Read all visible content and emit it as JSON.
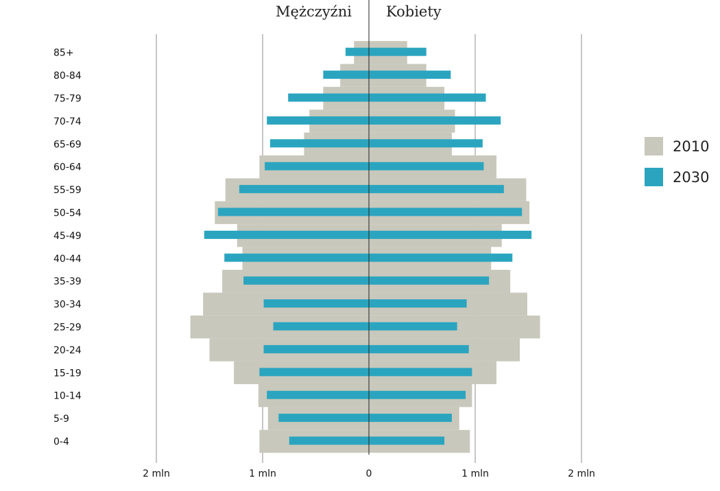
{
  "chart_data": {
    "type": "bar",
    "orientation": "horizontal",
    "subtype": "population-pyramid",
    "left_title": "Mężczyźni",
    "right_title": "Kobiety",
    "categories": [
      "85+",
      "80-84",
      "75-79",
      "70-74",
      "65-69",
      "60-64",
      "55-59",
      "50-54",
      "45-49",
      "40-44",
      "35-39",
      "30-34",
      "25-29",
      "20-24",
      "15-19",
      "10-14",
      "5-9",
      "0-4"
    ],
    "x_ticks": [
      {
        "value": -2.0,
        "label": "2 mln"
      },
      {
        "value": -1.0,
        "label": "1 mln"
      },
      {
        "value": 0.0,
        "label": "0"
      },
      {
        "value": 1.0,
        "label": "1 mln"
      },
      {
        "value": 2.0,
        "label": "2 mln"
      }
    ],
    "xlim": [
      -2.0,
      2.0
    ],
    "unit": "mln",
    "grid": true,
    "legend_position": "right",
    "series": [
      {
        "name": "2010",
        "color": "#c8c8bc",
        "style": "wide",
        "men": [
          0.14,
          0.27,
          0.43,
          0.56,
          0.61,
          1.03,
          1.35,
          1.45,
          1.24,
          1.19,
          1.38,
          1.56,
          1.68,
          1.5,
          1.27,
          1.04,
          0.95,
          1.03
        ],
        "women": [
          0.36,
          0.54,
          0.71,
          0.81,
          0.78,
          1.2,
          1.48,
          1.51,
          1.25,
          1.15,
          1.33,
          1.49,
          1.61,
          1.42,
          1.2,
          0.97,
          0.85,
          0.95
        ]
      },
      {
        "name": "2030",
        "color": "#2ba5bf",
        "style": "narrow",
        "men": [
          0.22,
          0.43,
          0.76,
          0.96,
          0.93,
          0.98,
          1.22,
          1.42,
          1.55,
          1.36,
          1.18,
          0.99,
          0.9,
          0.99,
          1.03,
          0.96,
          0.85,
          0.75
        ],
        "women": [
          0.54,
          0.77,
          1.1,
          1.24,
          1.07,
          1.08,
          1.27,
          1.44,
          1.53,
          1.35,
          1.13,
          0.92,
          0.83,
          0.94,
          0.97,
          0.91,
          0.78,
          0.71
        ]
      }
    ]
  }
}
